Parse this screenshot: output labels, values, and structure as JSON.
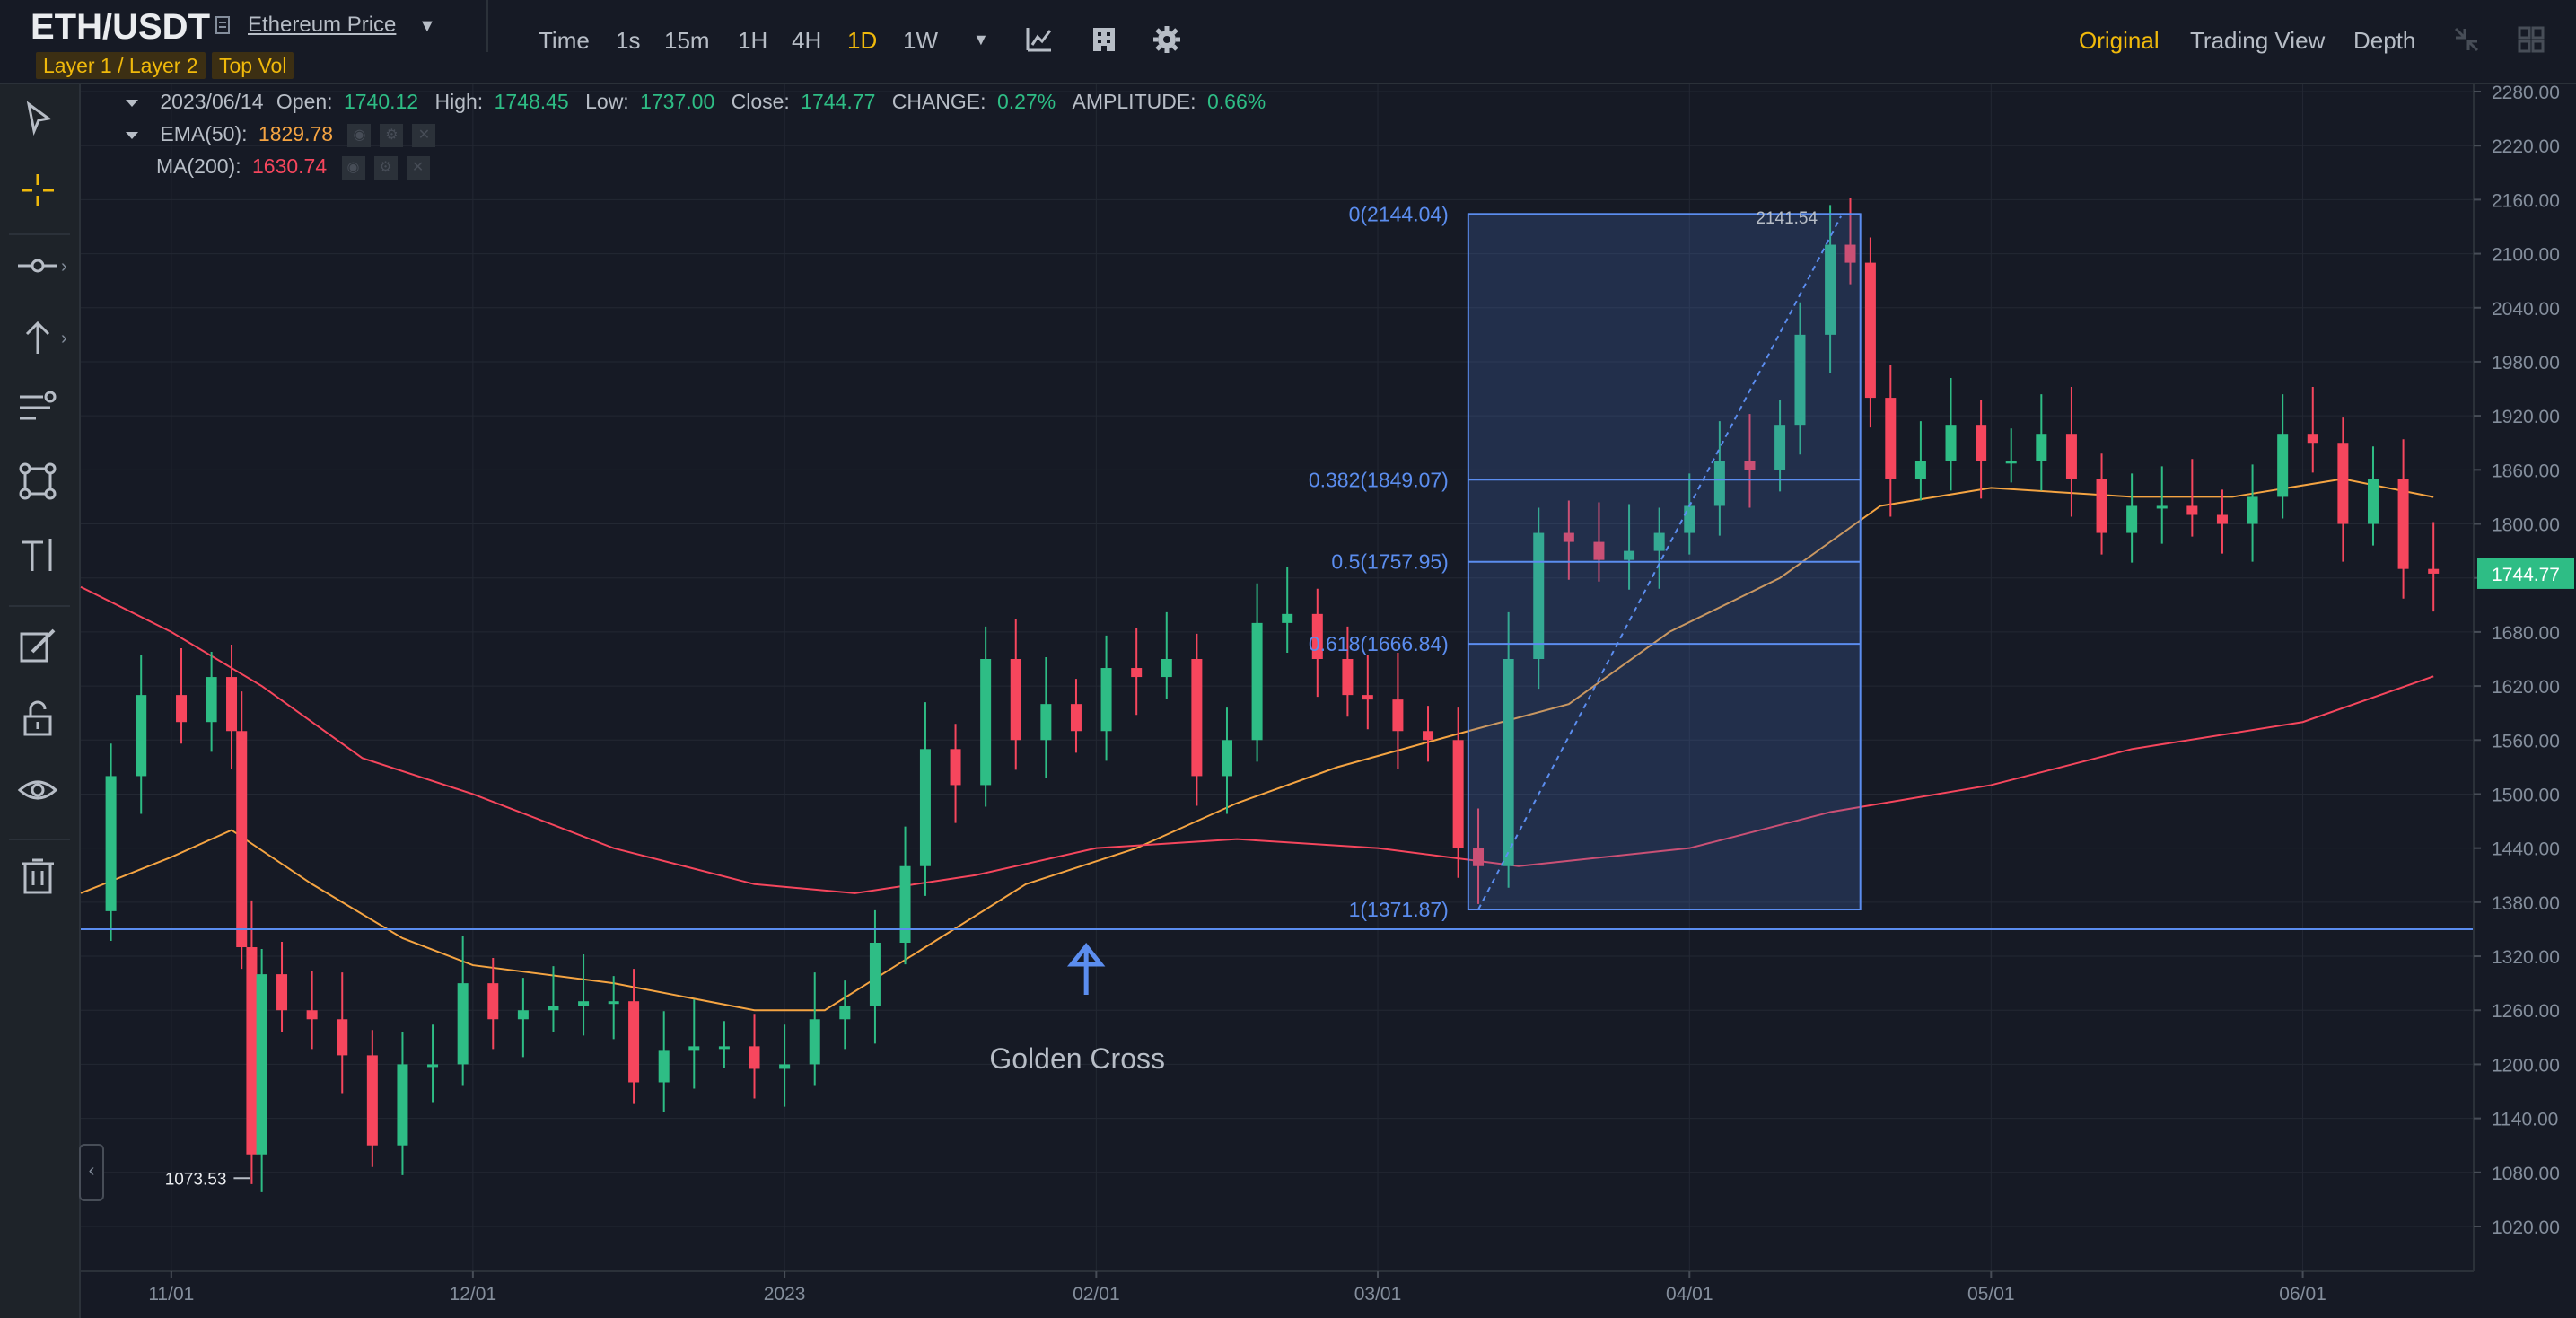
{
  "header": {
    "pair": "ETH/USDT",
    "price_link": "Ethereum Price",
    "tags": [
      "Layer 1 / Layer 2",
      "Top Vol"
    ],
    "intervals": [
      {
        "label": "Time",
        "active": false
      },
      {
        "label": "1s",
        "active": false
      },
      {
        "label": "15m",
        "active": false
      },
      {
        "label": "1H",
        "active": false
      },
      {
        "label": "4H",
        "active": false
      },
      {
        "label": "1D",
        "active": true
      },
      {
        "label": "1W",
        "active": false
      }
    ],
    "views": [
      {
        "label": "Original",
        "active": true
      },
      {
        "label": "Trading View",
        "active": false
      },
      {
        "label": "Depth",
        "active": false
      }
    ]
  },
  "legend": {
    "date": "2023/06/14",
    "open_label": "Open:",
    "open": "1740.12",
    "high_label": "High:",
    "high": "1748.45",
    "low_label": "Low:",
    "low": "1737.00",
    "close_label": "Close:",
    "close": "1744.77",
    "change_label": "CHANGE:",
    "change": "0.27%",
    "amplitude_label": "AMPLITUDE:",
    "amplitude": "0.66%",
    "ema_label": "EMA(50):",
    "ema_value": "1829.78",
    "ma_label": "MA(200):",
    "ma_value": "1630.74"
  },
  "colors": {
    "up": "#2ebd85",
    "down": "#f6465d",
    "ema": "#f5a442",
    "ma": "#f6465d",
    "accent": "#f0b90b",
    "fib": "#5b8def"
  },
  "chart_data": {
    "type": "candlestick",
    "y_ticks": [
      "2280.00",
      "2220.00",
      "2160.00",
      "2100.00",
      "2040.00",
      "1980.00",
      "1920.00",
      "1860.00",
      "1800.00",
      "1740.00",
      "1680.00",
      "1620.00",
      "1560.00",
      "1500.00",
      "1440.00",
      "1380.00",
      "1320.00",
      "1260.00",
      "1200.00",
      "1140.00",
      "1080.00",
      "1020.00"
    ],
    "x_ticks": [
      "11/01",
      "12/01",
      "2023",
      "02/01",
      "03/01",
      "04/01",
      "05/01",
      "06/01"
    ],
    "ylim": [
      1000,
      2300
    ],
    "x_range": [
      "2022-10-23",
      "2023-06-18"
    ],
    "last_price": 1744.77,
    "last_price_label": "1744.77",
    "horizontal_line": 1350,
    "annotation_text": "Golden Cross",
    "annotation_date": "2023-01-31",
    "low_marker": {
      "date": "2022-11-09",
      "value": 1073.53,
      "label": "1073.53"
    },
    "high_marker": {
      "date": "2023-04-15",
      "value": 2141.54,
      "label": "2141.54"
    },
    "fib": {
      "start_date": "2023-03-10",
      "end_date": "2023-04-18",
      "levels": [
        {
          "label": "0(2144.04)",
          "value": 2144.04
        },
        {
          "label": "0.382(1849.07)",
          "value": 1849.07
        },
        {
          "label": "0.5(1757.95)",
          "value": 1757.95
        },
        {
          "label": "0.618(1666.84)",
          "value": 1666.84
        },
        {
          "label": "1(1371.87)",
          "value": 1371.87
        }
      ]
    },
    "close_series": {
      "name": "Close",
      "points": [
        [
          "2022-10-23",
          1370
        ],
        [
          "2022-10-26",
          1520
        ],
        [
          "2022-10-29",
          1610
        ],
        [
          "2022-11-02",
          1580
        ],
        [
          "2022-11-05",
          1630
        ],
        [
          "2022-11-07",
          1570
        ],
        [
          "2022-11-08",
          1330
        ],
        [
          "2022-11-09",
          1100
        ],
        [
          "2022-11-10",
          1300
        ],
        [
          "2022-11-12",
          1260
        ],
        [
          "2022-11-15",
          1250
        ],
        [
          "2022-11-18",
          1210
        ],
        [
          "2022-11-21",
          1110
        ],
        [
          "2022-11-24",
          1200
        ],
        [
          "2022-11-27",
          1200
        ],
        [
          "2022-11-30",
          1290
        ],
        [
          "2022-12-03",
          1250
        ],
        [
          "2022-12-06",
          1260
        ],
        [
          "2022-12-09",
          1265
        ],
        [
          "2022-12-12",
          1270
        ],
        [
          "2022-12-15",
          1270
        ],
        [
          "2022-12-17",
          1180
        ],
        [
          "2022-12-20",
          1215
        ],
        [
          "2022-12-23",
          1220
        ],
        [
          "2022-12-26",
          1220
        ],
        [
          "2022-12-29",
          1195
        ],
        [
          "2023-01-01",
          1200
        ],
        [
          "2023-01-04",
          1250
        ],
        [
          "2023-01-07",
          1265
        ],
        [
          "2023-01-10",
          1335
        ],
        [
          "2023-01-13",
          1420
        ],
        [
          "2023-01-15",
          1550
        ],
        [
          "2023-01-18",
          1510
        ],
        [
          "2023-01-21",
          1650
        ],
        [
          "2023-01-24",
          1560
        ],
        [
          "2023-01-27",
          1600
        ],
        [
          "2023-01-30",
          1570
        ],
        [
          "2023-02-02",
          1640
        ],
        [
          "2023-02-05",
          1630
        ],
        [
          "2023-02-08",
          1650
        ],
        [
          "2023-02-11",
          1520
        ],
        [
          "2023-02-14",
          1560
        ],
        [
          "2023-02-17",
          1690
        ],
        [
          "2023-02-20",
          1700
        ],
        [
          "2023-02-23",
          1650
        ],
        [
          "2023-02-26",
          1610
        ],
        [
          "2023-02-28",
          1605
        ],
        [
          "2023-03-03",
          1570
        ],
        [
          "2023-03-06",
          1560
        ],
        [
          "2023-03-09",
          1440
        ],
        [
          "2023-03-11",
          1420
        ],
        [
          "2023-03-14",
          1650
        ],
        [
          "2023-03-17",
          1790
        ],
        [
          "2023-03-20",
          1780
        ],
        [
          "2023-03-23",
          1760
        ],
        [
          "2023-03-26",
          1770
        ],
        [
          "2023-03-29",
          1790
        ],
        [
          "2023-04-01",
          1820
        ],
        [
          "2023-04-04",
          1870
        ],
        [
          "2023-04-07",
          1860
        ],
        [
          "2023-04-10",
          1910
        ],
        [
          "2023-04-12",
          2010
        ],
        [
          "2023-04-15",
          2110
        ],
        [
          "2023-04-17",
          2090
        ],
        [
          "2023-04-19",
          1940
        ],
        [
          "2023-04-21",
          1850
        ],
        [
          "2023-04-24",
          1870
        ],
        [
          "2023-04-27",
          1910
        ],
        [
          "2023-04-30",
          1870
        ],
        [
          "2023-05-03",
          1870
        ],
        [
          "2023-05-06",
          1900
        ],
        [
          "2023-05-09",
          1850
        ],
        [
          "2023-05-12",
          1790
        ],
        [
          "2023-05-15",
          1820
        ],
        [
          "2023-05-18",
          1820
        ],
        [
          "2023-05-21",
          1810
        ],
        [
          "2023-05-24",
          1800
        ],
        [
          "2023-05-27",
          1830
        ],
        [
          "2023-05-30",
          1900
        ],
        [
          "2023-06-02",
          1890
        ],
        [
          "2023-06-05",
          1800
        ],
        [
          "2023-06-08",
          1850
        ],
        [
          "2023-06-11",
          1750
        ],
        [
          "2023-06-14",
          1744.77
        ]
      ]
    },
    "series": [
      {
        "name": "EMA(50)",
        "points": [
          [
            "2022-10-23",
            1390
          ],
          [
            "2022-11-01",
            1430
          ],
          [
            "2022-11-07",
            1460
          ],
          [
            "2022-11-15",
            1400
          ],
          [
            "2022-11-24",
            1340
          ],
          [
            "2022-12-01",
            1310
          ],
          [
            "2022-12-15",
            1290
          ],
          [
            "2022-12-29",
            1260
          ],
          [
            "2023-01-05",
            1260
          ],
          [
            "2023-01-15",
            1330
          ],
          [
            "2023-01-25",
            1400
          ],
          [
            "2023-02-05",
            1440
          ],
          [
            "2023-02-15",
            1490
          ],
          [
            "2023-02-25",
            1530
          ],
          [
            "2023-03-10",
            1570
          ],
          [
            "2023-03-20",
            1600
          ],
          [
            "2023-03-30",
            1680
          ],
          [
            "2023-04-10",
            1740
          ],
          [
            "2023-04-20",
            1820
          ],
          [
            "2023-05-01",
            1840
          ],
          [
            "2023-05-15",
            1830
          ],
          [
            "2023-05-25",
            1830
          ],
          [
            "2023-06-05",
            1850
          ],
          [
            "2023-06-14",
            1829.78
          ]
        ]
      },
      {
        "name": "MA(200)",
        "points": [
          [
            "2022-10-23",
            1730
          ],
          [
            "2022-11-01",
            1680
          ],
          [
            "2022-11-10",
            1620
          ],
          [
            "2022-11-20",
            1540
          ],
          [
            "2022-12-01",
            1500
          ],
          [
            "2022-12-15",
            1440
          ],
          [
            "2022-12-29",
            1400
          ],
          [
            "2023-01-08",
            1390
          ],
          [
            "2023-01-20",
            1410
          ],
          [
            "2023-02-01",
            1440
          ],
          [
            "2023-02-15",
            1450
          ],
          [
            "2023-03-01",
            1440
          ],
          [
            "2023-03-15",
            1420
          ],
          [
            "2023-04-01",
            1440
          ],
          [
            "2023-04-15",
            1480
          ],
          [
            "2023-05-01",
            1510
          ],
          [
            "2023-05-15",
            1550
          ],
          [
            "2023-06-01",
            1580
          ],
          [
            "2023-06-14",
            1630.74
          ]
        ]
      }
    ]
  }
}
